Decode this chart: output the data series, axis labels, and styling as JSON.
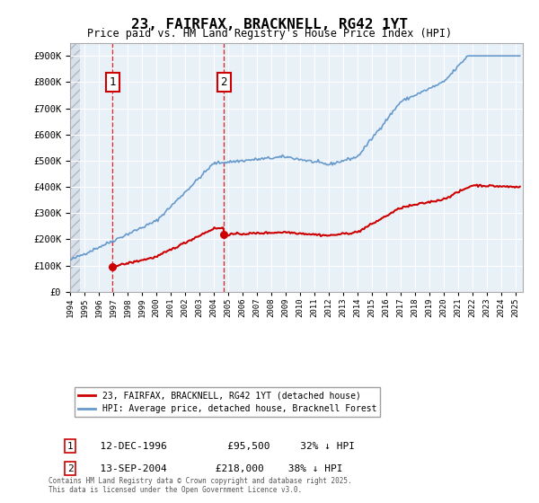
{
  "title": "23, FAIRFAX, BRACKNELL, RG42 1YT",
  "subtitle": "Price paid vs. HM Land Registry's House Price Index (HPI)",
  "ytick_vals": [
    0,
    100000,
    200000,
    300000,
    400000,
    500000,
    600000,
    700000,
    800000,
    900000
  ],
  "ylim": [
    0,
    950000
  ],
  "xlim_start": 1994.0,
  "xlim_end": 2025.5,
  "marker1_x": 1996.95,
  "marker1_y": 95500,
  "marker1_label": "1",
  "marker2_x": 2004.71,
  "marker2_y": 218000,
  "marker2_label": "2",
  "hpi_line_color": "#6699cc",
  "price_line_color": "#cc0000",
  "background_plot": "#e8f0f8",
  "grid_color": "#ffffff",
  "legend_entry1": "23, FAIRFAX, BRACKNELL, RG42 1YT (detached house)",
  "legend_entry2": "HPI: Average price, detached house, Bracknell Forest",
  "table_row1": [
    "1",
    "12-DEC-1996",
    "£95,500",
    "32% ↓ HPI"
  ],
  "table_row2": [
    "2",
    "13-SEP-2004",
    "£218,000",
    "38% ↓ HPI"
  ],
  "footer": "Contains HM Land Registry data © Crown copyright and database right 2025.\nThis data is licensed under the Open Government Licence v3.0."
}
